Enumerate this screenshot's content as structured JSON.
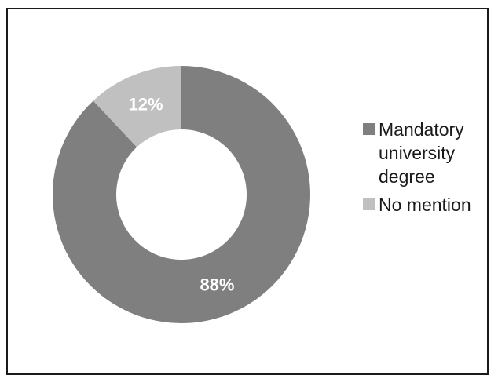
{
  "chart_data": {
    "type": "pie",
    "donut": true,
    "categories": [
      "Mandatory university degree",
      "No mention"
    ],
    "values": [
      88,
      12
    ],
    "slice_labels": [
      "88%",
      "12%"
    ],
    "colors": [
      "#7f7f7f",
      "#c0c0c0"
    ],
    "label_color": "#ffffff",
    "legend_position": "right"
  },
  "legend": {
    "items": [
      {
        "label": "Mandatory university degree",
        "color": "#7f7f7f"
      },
      {
        "label": "No mention",
        "color": "#c0c0c0"
      }
    ]
  }
}
